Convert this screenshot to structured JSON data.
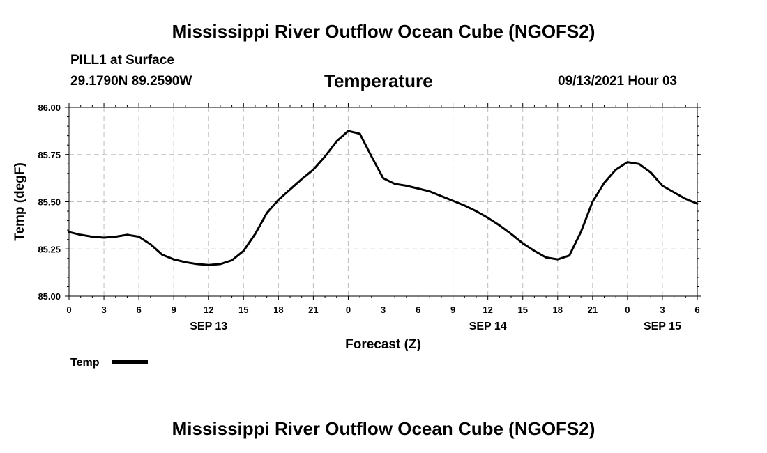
{
  "header": {
    "title": "Mississippi River Outflow Ocean Cube (NGOFS2)",
    "station": "PILL1 at Surface",
    "coords": "29.1790N  89.2590W",
    "variable": "Temperature",
    "datetime": "09/13/2021 Hour 03"
  },
  "footer": {
    "title": "Mississippi River Outflow Ocean Cube (NGOFS2)"
  },
  "legend": {
    "label": "Temp"
  },
  "chart_data": {
    "type": "line",
    "title": "Temperature",
    "xlabel": "Forecast (Z)",
    "ylabel": "Temp (degF)",
    "xlim": [
      0,
      54
    ],
    "ylim": [
      85.0,
      86.0
    ],
    "grid": true,
    "x_ticks": [
      0,
      3,
      6,
      9,
      12,
      15,
      18,
      21,
      24,
      27,
      30,
      33,
      36,
      39,
      42,
      45,
      48,
      51,
      54
    ],
    "x_tick_labels": [
      "0",
      "3",
      "6",
      "9",
      "12",
      "15",
      "18",
      "21",
      "0",
      "3",
      "6",
      "9",
      "12",
      "15",
      "18",
      "21",
      "0",
      "3",
      "6"
    ],
    "y_ticks": [
      85.0,
      85.25,
      85.5,
      85.75,
      86.0
    ],
    "y_tick_labels": [
      "85.00",
      "85.25",
      "85.50",
      "85.75",
      "86.00"
    ],
    "date_labels": [
      {
        "x": 12,
        "label": "SEP 13"
      },
      {
        "x": 36,
        "label": "SEP 14"
      },
      {
        "x": 51,
        "label": "SEP 15"
      }
    ],
    "series": [
      {
        "name": "Temp",
        "color": "#000000",
        "x": [
          0,
          1,
          2,
          3,
          4,
          5,
          6,
          7,
          8,
          9,
          10,
          11,
          12,
          13,
          14,
          15,
          16,
          17,
          18,
          19,
          20,
          21,
          22,
          23,
          24,
          25,
          26,
          27,
          28,
          29,
          30,
          31,
          32,
          33,
          34,
          35,
          36,
          37,
          38,
          39,
          40,
          41,
          42,
          43,
          44,
          45,
          46,
          47,
          48,
          49,
          50,
          51,
          52,
          53,
          54
        ],
        "y": [
          85.34,
          85.325,
          85.315,
          85.31,
          85.315,
          85.325,
          85.315,
          85.275,
          85.22,
          85.195,
          85.18,
          85.17,
          85.165,
          85.17,
          85.19,
          85.24,
          85.33,
          85.44,
          85.51,
          85.565,
          85.62,
          85.67,
          85.74,
          85.82,
          85.875,
          85.86,
          85.74,
          85.625,
          85.595,
          85.585,
          85.57,
          85.555,
          85.53,
          85.505,
          85.48,
          85.45,
          85.415,
          85.375,
          85.33,
          85.28,
          85.24,
          85.205,
          85.195,
          85.215,
          85.34,
          85.5,
          85.6,
          85.67,
          85.71,
          85.7,
          85.655,
          85.585,
          85.55,
          85.515,
          85.49
        ]
      }
    ]
  }
}
